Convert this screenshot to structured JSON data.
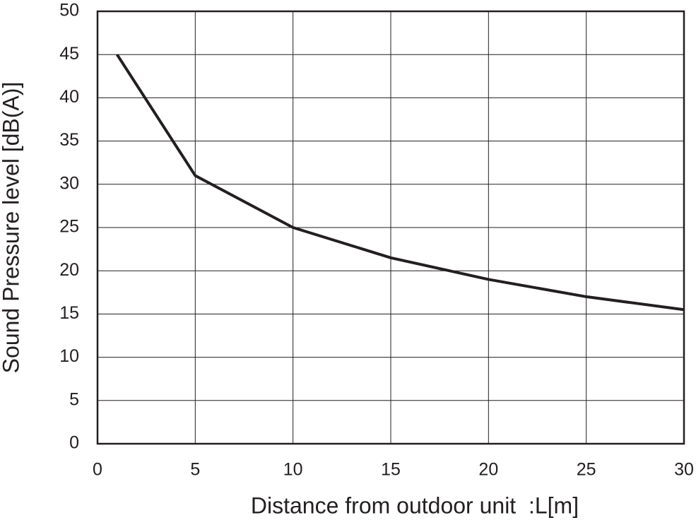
{
  "chart_data": {
    "type": "line",
    "x_label": "Distance from outdoor unit  :L[m]",
    "y_label": "Sound Pressure level [dB(A)]",
    "x": [
      1,
      5,
      10,
      15,
      20,
      25,
      30
    ],
    "values": [
      45,
      31,
      25,
      21.5,
      19,
      17,
      15.5
    ],
    "color": "#231f20",
    "xlim": [
      0,
      30
    ],
    "xticks": [
      0,
      5,
      10,
      15,
      20,
      25,
      30
    ],
    "ylim": [
      0,
      50
    ],
    "yticks": [
      0,
      5,
      10,
      15,
      20,
      25,
      30,
      35,
      40,
      45,
      50
    ],
    "grid": true
  }
}
